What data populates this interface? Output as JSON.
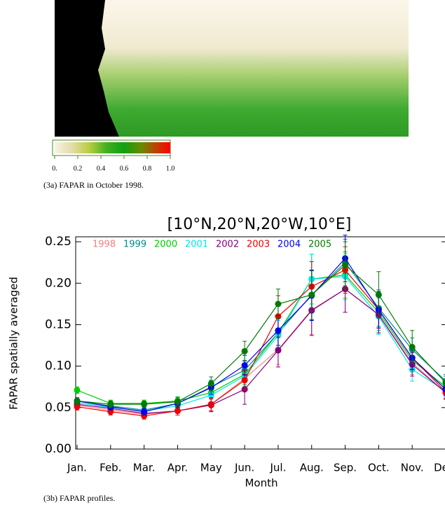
{
  "figure_a": {
    "colorbar": {
      "ticks": [
        {
          "value": 0,
          "label": "0."
        },
        0.2,
        0.4,
        0.6,
        0.8,
        {
          "value": 1,
          "label": "1.0"
        }
      ],
      "lim": [
        0,
        1
      ]
    },
    "caption": "(3a) FAPAR in October 1998."
  },
  "chart_data": {
    "type": "line",
    "title": "[10°N,20°N,20°W,10°E]",
    "x_label": "Month",
    "y_label": "FAPAR spatially averaged",
    "categories": [
      "Jan.",
      "Feb.",
      "Mar.",
      "Apr.",
      "May",
      "Jun.",
      "Jul.",
      "Aug.",
      "Sep.",
      "Oct.",
      "Nov.",
      "Dec."
    ],
    "ylim": [
      0,
      0.256
    ],
    "yticks": [
      {
        "value": 0,
        "label": "0.00"
      },
      0.05,
      {
        "value": 0.1,
        "label": "0.10"
      },
      0.15,
      {
        "value": 0.2,
        "label": "0.20"
      },
      0.25
    ],
    "series": [
      {
        "name": "1998",
        "color": "#f08080",
        "values": [
          0.053,
          0.047,
          0.042,
          0.046,
          0.054,
          0.085,
          0.12,
          0.168,
          0.193,
          0.162,
          0.104,
          0.068
        ],
        "errors": [
          0.004,
          0.004,
          0.004,
          0.005,
          0.008,
          0.012,
          0.018,
          0.03,
          0.028,
          0.022,
          0.014,
          0.008
        ]
      },
      {
        "name": "1999",
        "color": "#008b8b",
        "values": [
          0.058,
          0.052,
          0.047,
          0.055,
          0.075,
          0.095,
          0.14,
          0.186,
          0.225,
          0.17,
          0.12,
          0.082
        ],
        "errors": [
          0.004,
          0.004,
          0.004,
          0.005,
          0.008,
          0.012,
          0.018,
          0.03,
          0.028,
          0.022,
          0.014,
          0.008
        ]
      },
      {
        "name": "2000",
        "color": "#00cc00",
        "values": [
          0.071,
          0.055,
          0.055,
          0.058,
          0.068,
          0.09,
          0.14,
          0.205,
          0.21,
          0.165,
          0.107,
          0.075
        ],
        "errors": [
          0.004,
          0.004,
          0.004,
          0.005,
          0.008,
          0.012,
          0.018,
          0.03,
          0.028,
          0.022,
          0.014,
          0.008
        ]
      },
      {
        "name": "2001",
        "color": "#00e5ee",
        "values": [
          0.056,
          0.05,
          0.046,
          0.052,
          0.065,
          0.088,
          0.137,
          0.205,
          0.208,
          0.16,
          0.096,
          0.07
        ],
        "errors": [
          0.004,
          0.004,
          0.004,
          0.005,
          0.008,
          0.012,
          0.018,
          0.03,
          0.028,
          0.022,
          0.014,
          0.008
        ]
      },
      {
        "name": "2002",
        "color": "#800080",
        "values": [
          0.054,
          0.049,
          0.043,
          0.046,
          0.053,
          0.072,
          0.119,
          0.167,
          0.193,
          0.162,
          0.102,
          0.068
        ],
        "errors": [
          0.004,
          0.004,
          0.004,
          0.005,
          0.008,
          0.018,
          0.02,
          0.03,
          0.028,
          0.022,
          0.014,
          0.008
        ]
      },
      {
        "name": "2003",
        "color": "#ee0000",
        "values": [
          0.051,
          0.045,
          0.04,
          0.046,
          0.054,
          0.083,
          0.16,
          0.196,
          0.216,
          0.168,
          0.11,
          0.069
        ],
        "errors": [
          0.004,
          0.004,
          0.004,
          0.005,
          0.008,
          0.012,
          0.025,
          0.03,
          0.028,
          0.022,
          0.014,
          0.008
        ]
      },
      {
        "name": "2004",
        "color": "#0000ee",
        "values": [
          0.058,
          0.051,
          0.045,
          0.055,
          0.074,
          0.101,
          0.143,
          0.185,
          0.23,
          0.168,
          0.11,
          0.072
        ],
        "errors": [
          0.004,
          0.004,
          0.004,
          0.005,
          0.008,
          0.012,
          0.018,
          0.03,
          0.028,
          0.022,
          0.014,
          0.008
        ]
      },
      {
        "name": "2005",
        "color": "#007a00",
        "values": [
          0.058,
          0.054,
          0.054,
          0.057,
          0.079,
          0.118,
          0.175,
          0.186,
          0.222,
          0.186,
          0.123,
          0.08
        ],
        "errors": [
          0.004,
          0.004,
          0.004,
          0.005,
          0.008,
          0.012,
          0.018,
          0.03,
          0.028,
          0.028,
          0.02,
          0.008
        ]
      }
    ]
  },
  "caption_b": "(3b) FAPAR profiles."
}
